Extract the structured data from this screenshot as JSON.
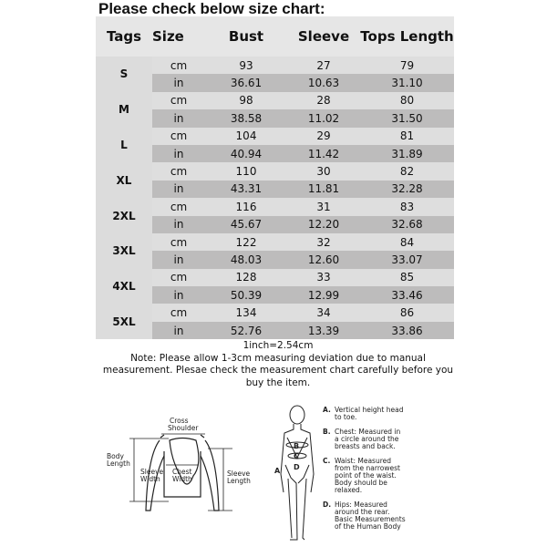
{
  "title": "Please check below size chart:",
  "headers": {
    "tags": "Tags",
    "size": "Size",
    "bust": "Bust",
    "sleeve": "Sleeve",
    "tops_length": "Tops Length"
  },
  "rows": [
    {
      "tag": "S",
      "cm": [
        "93",
        "27",
        "79"
      ],
      "in": [
        "36.61",
        "10.63",
        "31.10"
      ]
    },
    {
      "tag": "M",
      "cm": [
        "98",
        "28",
        "80"
      ],
      "in": [
        "38.58",
        "11.02",
        "31.50"
      ]
    },
    {
      "tag": "L",
      "cm": [
        "104",
        "29",
        "81"
      ],
      "in": [
        "40.94",
        "11.42",
        "31.89"
      ]
    },
    {
      "tag": "XL",
      "cm": [
        "110",
        "30",
        "82"
      ],
      "in": [
        "43.31",
        "11.81",
        "32.28"
      ]
    },
    {
      "tag": "2XL",
      "cm": [
        "116",
        "31",
        "83"
      ],
      "in": [
        "45.67",
        "12.20",
        "32.68"
      ]
    },
    {
      "tag": "3XL",
      "cm": [
        "122",
        "32",
        "84"
      ],
      "in": [
        "48.03",
        "12.60",
        "33.07"
      ]
    },
    {
      "tag": "4XL",
      "cm": [
        "128",
        "33",
        "85"
      ],
      "in": [
        "50.39",
        "12.99",
        "33.46"
      ]
    },
    {
      "tag": "5XL",
      "cm": [
        "134",
        "34",
        "86"
      ],
      "in": [
        "52.76",
        "13.39",
        "33.86"
      ]
    }
  ],
  "units": {
    "cm": "cm",
    "in": "in"
  },
  "conversion": "1inch=2.54cm",
  "note": "Note: Please allow 1-3cm measuring deviation due to manual measurement. Plesae check the measurement chart carefully before you buy the item.",
  "garment": {
    "cross_shoulder": [
      "Cross",
      "Shoulder"
    ],
    "body_length": [
      "Body",
      "Length"
    ],
    "sleeve_width": [
      "Sleeve",
      "Width"
    ],
    "chest_width": [
      "Chest",
      "Width"
    ],
    "sleeve_length": [
      "Sleeve",
      "Length"
    ]
  },
  "body": {
    "labels": [
      "A",
      "B",
      "C",
      "D"
    ],
    "legend": [
      {
        "key": "A.",
        "lines": [
          "Vertical height head",
          "to toe."
        ]
      },
      {
        "key": "B.",
        "lines": [
          "Chest: Measured in",
          "a circle around the",
          "breasts and back."
        ]
      },
      {
        "key": "C.",
        "lines": [
          "Waist: Measured",
          "from the narrowest",
          "point of the waist.",
          "Body should be",
          "relaxed."
        ]
      },
      {
        "key": "D.",
        "lines": [
          "Hips: Measured",
          "around the rear.",
          "Basic Measurements",
          "of the Human Body"
        ]
      }
    ]
  }
}
